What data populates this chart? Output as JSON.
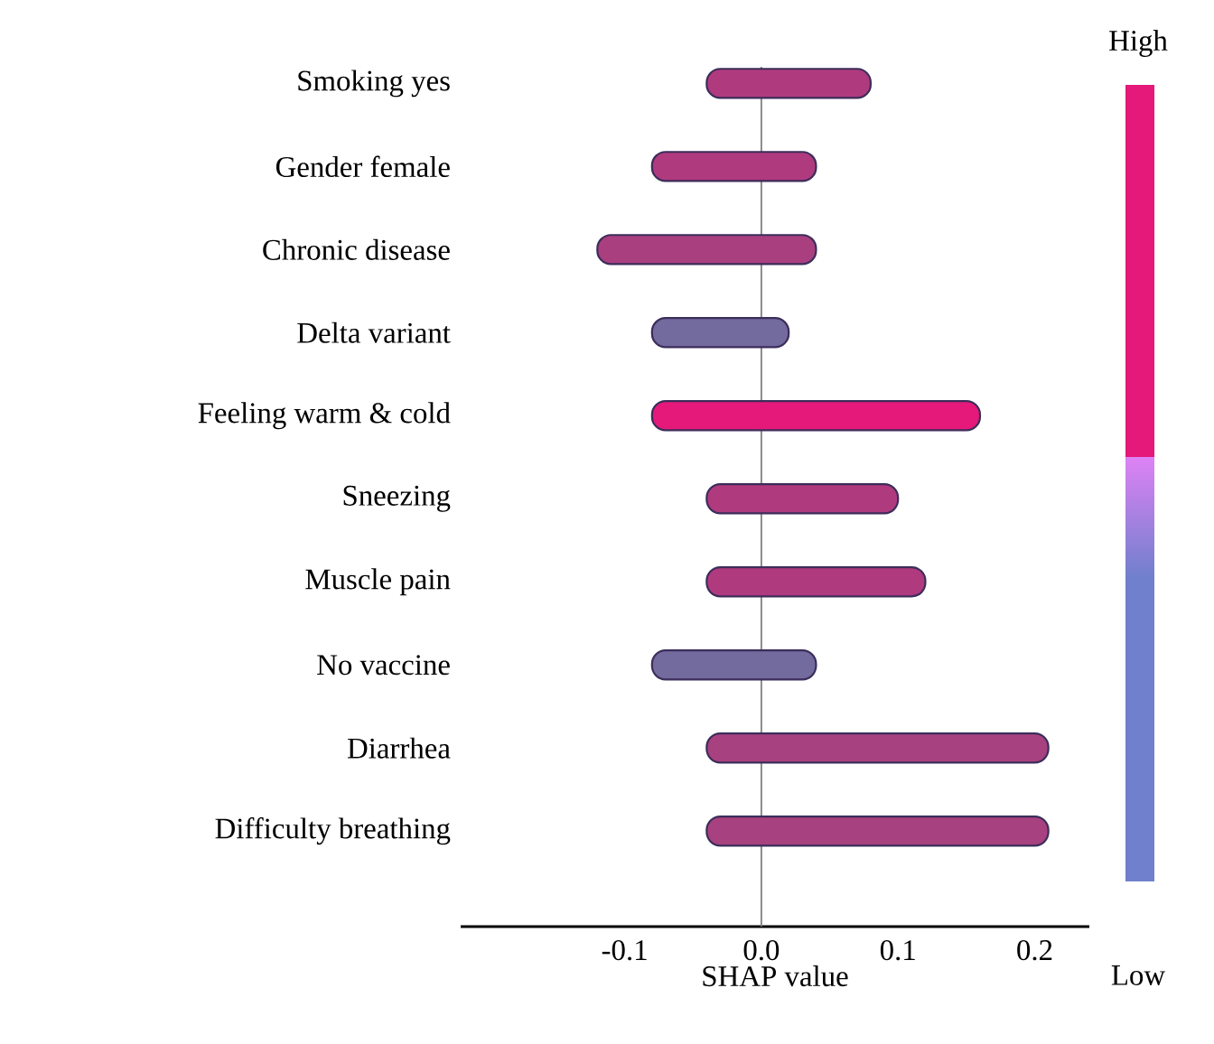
{
  "chart_data": {
    "type": "bar",
    "orientation": "horizontal",
    "xlabel": "SHAP value",
    "categories": [
      "Smoking yes",
      "Gender female",
      "Chronic disease",
      "Delta variant",
      "Feeling warm & cold",
      "Sneezing",
      "Muscle pain",
      "No vaccine",
      "Diarrhea",
      "Difficulty breathing"
    ],
    "base": [
      -0.04,
      -0.08,
      -0.12,
      -0.08,
      -0.08,
      -0.04,
      -0.04,
      -0.08,
      -0.04,
      -0.04
    ],
    "values": [
      0.12,
      0.12,
      0.16,
      0.1,
      0.24,
      0.14,
      0.16,
      0.12,
      0.25,
      0.25
    ],
    "colors": [
      "#b03a7e",
      "#b03a7e",
      "#aa3f80",
      "#736a9e",
      "#e5197a",
      "#b03a7e",
      "#b03a7e",
      "#736a9e",
      "#a8417f",
      "#a8417f"
    ],
    "xlim": [
      -0.22,
      0.24
    ],
    "xticks": [
      -0.1,
      {
        "value": 0,
        "label": "0.0"
      },
      0.1,
      0.2
    ],
    "ref_lines": [
      {
        "axis": "x",
        "value": 0,
        "color": "#808080"
      }
    ],
    "annotations": [
      "High",
      "Low"
    ]
  }
}
